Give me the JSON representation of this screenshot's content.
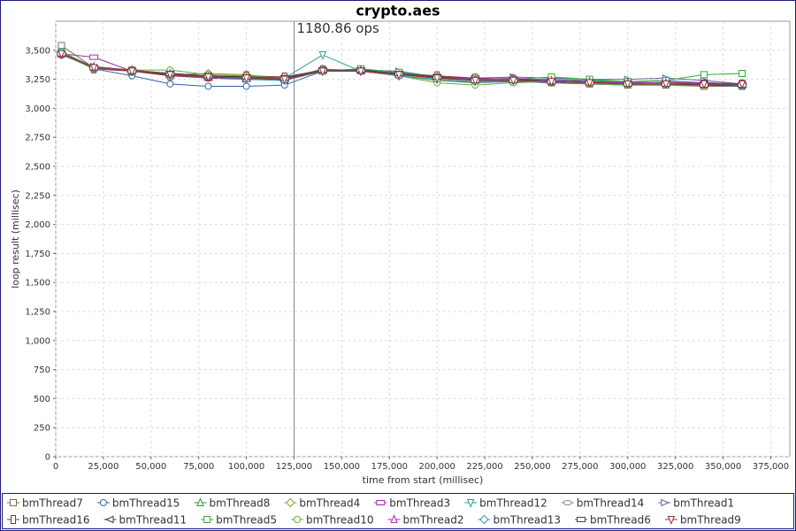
{
  "chart_data": {
    "type": "line",
    "title": "crypto.aes",
    "x_label": "time from start (millisec)",
    "y_label": "loop result (millisec)",
    "annotation": {
      "text": "1180.86 ops",
      "x": 125000
    },
    "xlim": [
      0,
      385000
    ],
    "ylim": [
      0,
      3750
    ],
    "grid": true,
    "legend": "bottom",
    "xticks": [
      0,
      {
        "value": 25000,
        "label": "25,000"
      },
      {
        "value": 50000,
        "label": "50,000"
      },
      {
        "value": 75000,
        "label": "75,000"
      },
      {
        "value": 100000,
        "label": "100,000"
      },
      {
        "value": 125000,
        "label": "125,000"
      },
      {
        "value": 150000,
        "label": "150,000"
      },
      {
        "value": 175000,
        "label": "175,000"
      },
      {
        "value": 200000,
        "label": "200,000"
      },
      {
        "value": 225000,
        "label": "225,000"
      },
      {
        "value": 250000,
        "label": "250,000"
      },
      {
        "value": 275000,
        "label": "275,000"
      },
      {
        "value": 300000,
        "label": "300,000"
      },
      {
        "value": 325000,
        "label": "325,000"
      },
      {
        "value": 350000,
        "label": "350,000"
      },
      {
        "value": 375000,
        "label": "375,000"
      }
    ],
    "yticks": [
      0,
      250,
      500,
      750,
      {
        "value": 1000,
        "label": "1,000"
      },
      {
        "value": 1250,
        "label": "1,250"
      },
      {
        "value": 1500,
        "label": "1,500"
      },
      {
        "value": 1750,
        "label": "1,750"
      },
      {
        "value": 2000,
        "label": "2,000"
      },
      {
        "value": 2250,
        "label": "2,250"
      },
      {
        "value": 2500,
        "label": "2,500"
      },
      {
        "value": 2750,
        "label": "2,750"
      },
      {
        "value": 3000,
        "label": "3,000"
      },
      {
        "value": 3250,
        "label": "3,250"
      },
      {
        "value": 3500,
        "label": "3,500"
      }
    ],
    "x": [
      3000,
      20000,
      40000,
      60000,
      80000,
      100000,
      120000,
      140000,
      160000,
      180000,
      200000,
      220000,
      240000,
      260000,
      280000,
      300000,
      320000,
      340000,
      360000
    ],
    "series": [
      {
        "name": "bmThread7",
        "color": "#8c6a4a",
        "marker": "square",
        "values": [
          3540,
          3350,
          3330,
          3290,
          3270,
          3260,
          3250,
          3320,
          3330,
          3290,
          3270,
          3240,
          3230,
          3220,
          3210,
          3200,
          3200,
          3190,
          3190
        ]
      },
      {
        "name": "bmThread15",
        "color": "#3366aa",
        "marker": "circle",
        "values": [
          3480,
          3340,
          3280,
          3210,
          3190,
          3190,
          3200,
          3320,
          3320,
          3280,
          3240,
          3220,
          3230,
          3220,
          3210,
          3200,
          3200,
          3200,
          3190
        ]
      },
      {
        "name": "bmThread8",
        "color": "#339933",
        "marker": "triangle-up",
        "values": [
          3470,
          3360,
          3330,
          3300,
          3280,
          3270,
          3260,
          3330,
          3330,
          3290,
          3260,
          3250,
          3250,
          3240,
          3240,
          3220,
          3220,
          3220,
          3210
        ]
      },
      {
        "name": "bmThread4",
        "color": "#999933",
        "marker": "diamond",
        "values": [
          3460,
          3350,
          3320,
          3290,
          3300,
          3290,
          3250,
          3340,
          3320,
          3280,
          3240,
          3230,
          3240,
          3250,
          3230,
          3210,
          3230,
          3220,
          3210
        ]
      },
      {
        "name": "bmThread3",
        "color": "#993399",
        "marker": "rect-h",
        "values": [
          3470,
          3440,
          3320,
          3280,
          3260,
          3250,
          3250,
          3320,
          3320,
          3290,
          3270,
          3260,
          3250,
          3240,
          3230,
          3220,
          3220,
          3210,
          3200
        ]
      },
      {
        "name": "bmThread12",
        "color": "#339999",
        "marker": "triangle-down",
        "values": [
          3490,
          3350,
          3320,
          3300,
          3280,
          3270,
          3260,
          3460,
          3320,
          3290,
          3260,
          3240,
          3250,
          3250,
          3240,
          3230,
          3240,
          3220,
          3200
        ]
      },
      {
        "name": "bmThread14",
        "color": "#888888",
        "marker": "ellipse",
        "values": [
          3470,
          3340,
          3330,
          3290,
          3270,
          3260,
          3260,
          3320,
          3330,
          3300,
          3270,
          3250,
          3250,
          3240,
          3230,
          3230,
          3220,
          3220,
          3210
        ]
      },
      {
        "name": "bmThread1",
        "color": "#666699",
        "marker": "triangle-right",
        "values": [
          3480,
          3360,
          3320,
          3300,
          3280,
          3250,
          3240,
          3320,
          3330,
          3320,
          3270,
          3260,
          3270,
          3260,
          3250,
          3250,
          3260,
          3240,
          3210
        ]
      },
      {
        "name": "bmThread16",
        "color": "#883333",
        "marker": "rect-v",
        "values": [
          3470,
          3340,
          3320,
          3280,
          3270,
          3280,
          3270,
          3330,
          3330,
          3300,
          3280,
          3260,
          3250,
          3240,
          3230,
          3210,
          3210,
          3210,
          3210
        ]
      },
      {
        "name": "bmThread11",
        "color": "#333366",
        "marker": "triangle-left",
        "values": [
          3480,
          3350,
          3320,
          3290,
          3270,
          3260,
          3240,
          3330,
          3320,
          3300,
          3270,
          3250,
          3250,
          3240,
          3230,
          3220,
          3220,
          3220,
          3210
        ]
      },
      {
        "name": "bmThread5",
        "color": "#33aa33",
        "marker": "square",
        "values": [
          3480,
          3350,
          3320,
          3290,
          3270,
          3260,
          3250,
          3320,
          3340,
          3310,
          3270,
          3250,
          3250,
          3270,
          3250,
          3230,
          3240,
          3290,
          3300
        ]
      },
      {
        "name": "bmThread10",
        "color": "#66aa33",
        "marker": "circle",
        "values": [
          3470,
          3340,
          3330,
          3330,
          3290,
          3280,
          3260,
          3330,
          3320,
          3280,
          3220,
          3200,
          3220,
          3230,
          3210,
          3200,
          3200,
          3200,
          3200
        ]
      },
      {
        "name": "bmThread2",
        "color": "#aa33aa",
        "marker": "triangle-up",
        "values": [
          3470,
          3350,
          3330,
          3300,
          3270,
          3260,
          3250,
          3330,
          3330,
          3290,
          3270,
          3250,
          3260,
          3240,
          3230,
          3220,
          3220,
          3220,
          3210
        ]
      },
      {
        "name": "bmThread13",
        "color": "#3399aa",
        "marker": "diamond",
        "values": [
          3480,
          3350,
          3320,
          3290,
          3270,
          3250,
          3240,
          3330,
          3320,
          3280,
          3250,
          3230,
          3240,
          3230,
          3220,
          3210,
          3210,
          3210,
          3200
        ]
      },
      {
        "name": "bmThread6",
        "color": "#444444",
        "marker": "rect-h",
        "values": [
          3470,
          3350,
          3320,
          3300,
          3280,
          3270,
          3260,
          3330,
          3330,
          3300,
          3270,
          3240,
          3240,
          3230,
          3220,
          3210,
          3210,
          3200,
          3200
        ]
      },
      {
        "name": "bmThread9",
        "color": "#993333",
        "marker": "triangle-down",
        "values": [
          3470,
          3350,
          3320,
          3290,
          3270,
          3260,
          3250,
          3320,
          3320,
          3290,
          3260,
          3240,
          3240,
          3230,
          3220,
          3210,
          3210,
          3210,
          3210
        ]
      }
    ]
  }
}
